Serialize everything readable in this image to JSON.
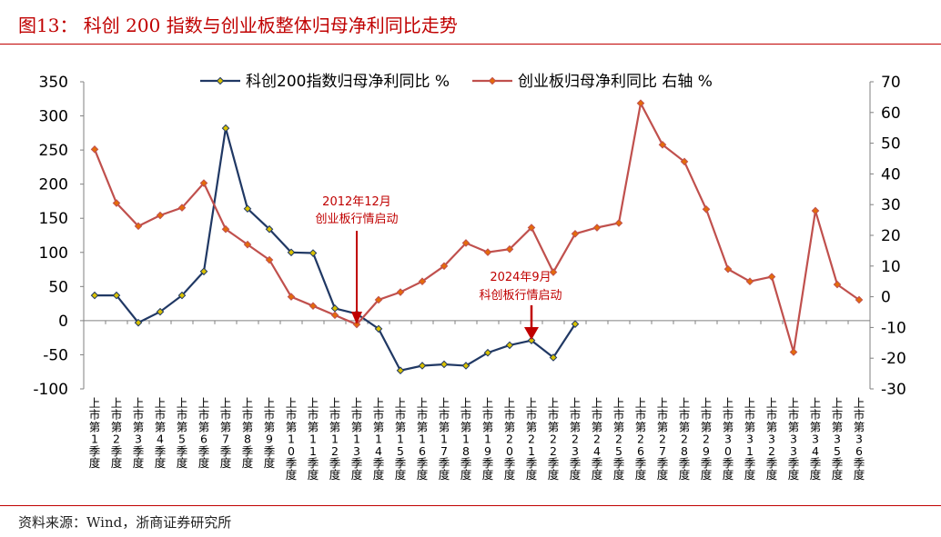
{
  "title": "图13：  科创 200 指数与创业板整体归母净利同比走势",
  "source": "资料来源：Wind，浙商证券研究所",
  "chart_data": {
    "type": "line",
    "categories": [
      "上市第1季度",
      "上市第2季度",
      "上市第3季度",
      "上市第4季度",
      "上市第5季度",
      "上市第6季度",
      "上市第7季度",
      "上市第8季度",
      "上市第9季度",
      "上市第10季度",
      "上市第11季度",
      "上市第12季度",
      "上市第13季度",
      "上市第14季度",
      "上市第15季度",
      "上市第16季度",
      "上市第17季度",
      "上市第18季度",
      "上市第19季度",
      "上市第20季度",
      "上市第21季度",
      "上市第22季度",
      "上市第23季度",
      "上市第24季度",
      "上市第25季度",
      "上市第26季度",
      "上市第27季度",
      "上市第28季度",
      "上市第29季度",
      "上市第30季度",
      "上市第31季度",
      "上市第32季度",
      "上市第33季度",
      "上市第34季度",
      "上市第35季度",
      "上市第36季度"
    ],
    "series": [
      {
        "name": "科创200指数归母净利同比 %",
        "axis": "left",
        "color": "#203864",
        "values": [
          37,
          37,
          -3,
          13,
          37,
          72,
          282,
          164,
          134,
          100,
          99,
          18,
          10,
          -12,
          -73,
          -66,
          -64,
          -66,
          -47,
          -36,
          -29,
          -54,
          -5,
          null,
          null,
          null,
          null,
          null,
          null,
          null,
          null,
          null,
          null,
          null,
          null,
          null
        ]
      },
      {
        "name": "创业板归母净利同比 右轴 %",
        "axis": "right",
        "color": "#c0504d",
        "marker_color": "#e46c0a",
        "values": [
          48,
          30.5,
          23,
          26.5,
          29,
          37,
          22,
          17,
          12,
          0,
          -3,
          -6,
          -9,
          -1,
          1.5,
          5,
          10,
          17.5,
          14.5,
          15.5,
          22.5,
          8,
          20.5,
          22.5,
          24,
          63,
          49.5,
          44,
          28.5,
          9,
          5,
          6.5,
          -18,
          28,
          4,
          -1
        ]
      }
    ],
    "y_left": {
      "min": -100,
      "max": 350,
      "ticks": [
        "-100",
        "-50",
        "0",
        "50",
        "100",
        "150",
        "200",
        "250",
        "300",
        "350"
      ]
    },
    "y_right": {
      "min": -30,
      "max": 70,
      "ticks": [
        "-30",
        "-20",
        "-10",
        "0",
        "10",
        "20",
        "30",
        "40",
        "50",
        "60",
        "70"
      ]
    },
    "legend_placement": "top",
    "annotations": [
      {
        "lines": [
          "2012年12月",
          "创业板行情启动"
        ],
        "category_index": 12,
        "color": "#c00000"
      },
      {
        "lines": [
          "2024年9月",
          "科创板行情启动"
        ],
        "category_index": 20,
        "color": "#c00000"
      }
    ],
    "grid": false
  }
}
